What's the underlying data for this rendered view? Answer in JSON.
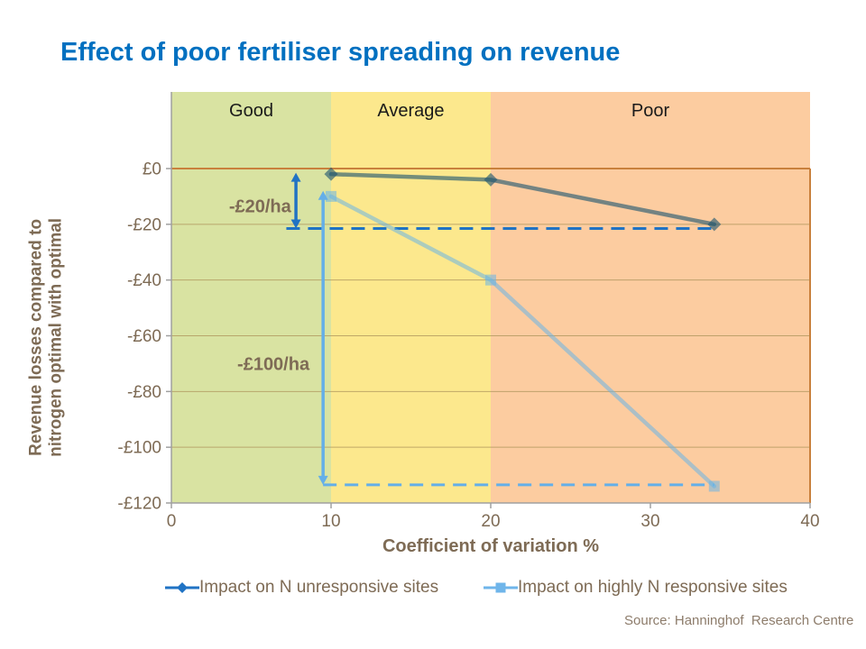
{
  "title": "Effect of poor fertiliser spreading on revenue",
  "title_color": "#0070C0",
  "axis_titles": {
    "y_line1": "Revenue losses compared to",
    "y_line2": "nitrogen optimal with optimal",
    "x": "Coefficient of variation %"
  },
  "source": "Source: Hanninghof  Research Centre",
  "colors": {
    "title_blue": "#0070C0",
    "text_brown": "#7E6B55",
    "grid": "#B0975E",
    "zero_line": "#C9803C",
    "axis_grey": "#A0A0A0",
    "series1_legend": "#2073C4",
    "series2_legend": "#6FB5EA"
  },
  "chart_data": {
    "type": "line",
    "title": "Effect of poor fertiliser spreading on revenue",
    "xlabel": "Coefficient of variation %",
    "ylabel": "Revenue losses compared to nitrogen optimal with optimal",
    "xlim": [
      0,
      40
    ],
    "ylim": [
      -120,
      27
    ],
    "grid": "horizontal",
    "legend_position": "bottom",
    "x_ticks": [
      "0",
      "10",
      "20",
      "30",
      "40"
    ],
    "y_ticks": [
      {
        "label": "£0",
        "value": 0
      },
      {
        "label": "-£20",
        "value": -20
      },
      {
        "label": "-£40",
        "value": -40
      },
      {
        "label": "-£60",
        "value": -60
      },
      {
        "label": "-£80",
        "value": -80
      },
      {
        "label": "-£100",
        "value": -100
      },
      {
        "label": "-£120",
        "value": -120
      }
    ],
    "zones": [
      {
        "label": "Good",
        "from": 0,
        "to": 10,
        "color": "#D9E3A2"
      },
      {
        "label": "Average",
        "from": 10,
        "to": 20,
        "color": "#FCE88D"
      },
      {
        "label": "Poor",
        "from": 20,
        "to": 40,
        "color": "#FCCCA0"
      }
    ],
    "series": [
      {
        "name": "Impact on N unresponsive sites",
        "marker": "diamond",
        "legend_color": "#2073C4",
        "plot_color": "rgba(30,85,112,0.62)",
        "x": [
          10,
          20,
          34
        ],
        "y": [
          -2,
          -4,
          -20
        ]
      },
      {
        "name": "Impact on highly N responsive sites",
        "marker": "square",
        "legend_color": "#6FB5EA",
        "plot_color": "rgba(106,180,230,0.55)",
        "x": [
          10,
          20,
          34
        ],
        "y": [
          -10,
          -40,
          -114
        ]
      }
    ],
    "annotations": [
      {
        "label": "-£20/ha",
        "arrow_x": 7.8,
        "y_top": -1.5,
        "y_bottom": -21.5,
        "dash_from_x": 7.2,
        "dash_to_x": 34,
        "color": "#2073C4",
        "label_x": 7.5,
        "label_y": -13.4
      },
      {
        "label": "-£100/ha",
        "arrow_x": 9.5,
        "y_top": -8,
        "y_bottom": -113.5,
        "dash_from_x": 9.5,
        "dash_to_x": 34,
        "color": "#64AFE8",
        "label_x": 8.65,
        "label_y": -70
      }
    ]
  }
}
